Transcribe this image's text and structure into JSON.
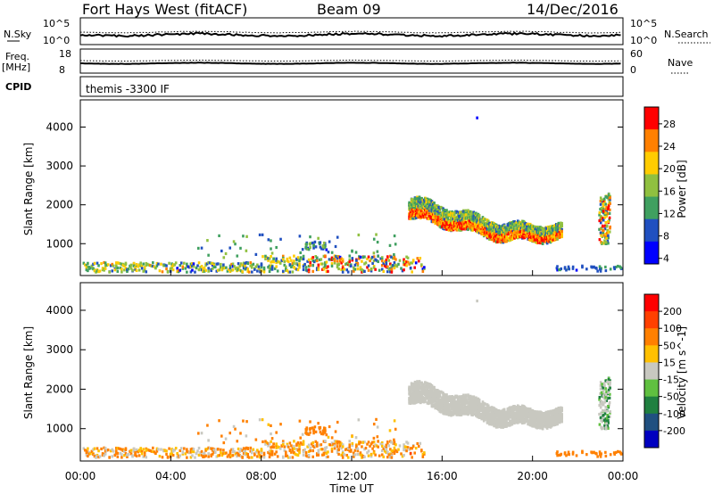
{
  "header": {
    "station": "Fort Hays West (fitACF)",
    "beam": "Beam 09",
    "date": "14/Dec/2016"
  },
  "panels": {
    "sky_label": "N.Sky",
    "sky_ticks": [
      "10^5",
      "10^0"
    ],
    "search_label": "N.Search",
    "search_ticks": [
      "10^5",
      "10^0"
    ],
    "freq_label": "Freq.",
    "freq_unit": "[MHz]",
    "freq_ticks": [
      "18",
      "8"
    ],
    "nave_label": "Nave",
    "nave_ticks": [
      "60",
      "0"
    ],
    "cpid_label": "CPID",
    "cpid_value": "themis -3300 IF"
  },
  "chart_data": [
    {
      "type": "heatmap",
      "name": "power",
      "ylabel": "Slant Range [km]",
      "xlabel": "",
      "ylim": [
        180,
        4700
      ],
      "y_ticks": [
        "4000",
        "3000",
        "2000",
        "1000"
      ],
      "y_tick_values": [
        4000,
        3000,
        2000,
        1000
      ],
      "colorbar": {
        "label": "Power [dB]",
        "ticks": [
          "28",
          "24",
          "20",
          "16",
          "12",
          "8",
          "4"
        ],
        "tick_values": [
          28,
          24,
          20,
          16,
          12,
          8,
          4
        ],
        "range": [
          0,
          30
        ],
        "colors": [
          "#0000ff",
          "#2050c0",
          "#40a060",
          "#90c040",
          "#ffcc00",
          "#ff8000",
          "#ff0000"
        ]
      }
    },
    {
      "type": "heatmap",
      "name": "velocity",
      "ylabel": "Slant Range [km]",
      "xlabel": "Time UT",
      "ylim": [
        180,
        4700
      ],
      "y_ticks": [
        "4000",
        "3000",
        "2000",
        "1000"
      ],
      "y_tick_values": [
        4000,
        3000,
        2000,
        1000
      ],
      "x_ticks": [
        "00:00",
        "04:00",
        "08:00",
        "12:00",
        "16:00",
        "20:00",
        "00:00"
      ],
      "x_tick_values": [
        0,
        4,
        8,
        12,
        16,
        20,
        24
      ],
      "colorbar": {
        "label": "Velocity [m s^-1]",
        "ticks": [
          "200",
          "100",
          "50",
          "15",
          "-15",
          "-50",
          "-100",
          "-200"
        ],
        "colors": [
          "#0000c0",
          "#205080",
          "#208040",
          "#60c040",
          "#c8c8c0",
          "#ffc000",
          "#ff8000",
          "#ff4000",
          "#ff0000"
        ]
      }
    }
  ]
}
